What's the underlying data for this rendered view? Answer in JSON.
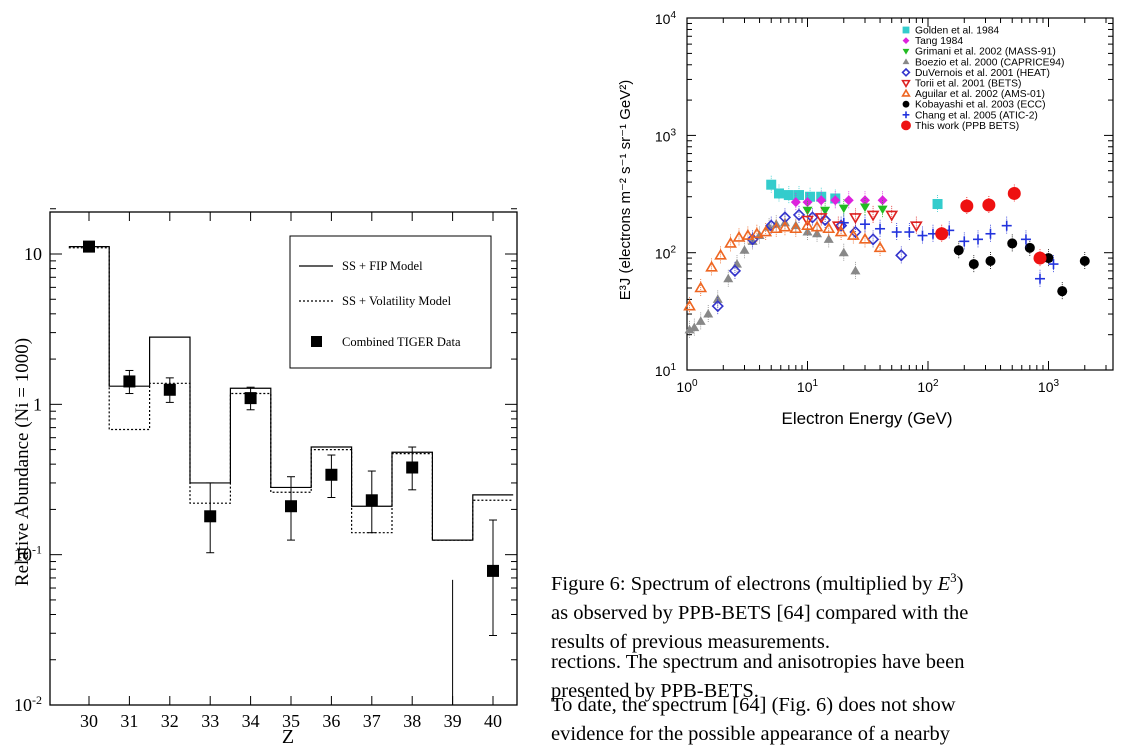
{
  "left_chart": {
    "type": "step-scatter",
    "ylabel": "Relative Abundance (Ni = 1000)",
    "xlabel": "Z",
    "y_log": true,
    "ylim": [
      0.01,
      20
    ],
    "xlim": [
      29.5,
      40.5
    ],
    "x_ticks": [
      "30",
      "31",
      "32",
      "33",
      "34",
      "35",
      "36",
      "37",
      "38",
      "39",
      "40"
    ],
    "y_ticks": [
      {
        "value": 10,
        "base": "10",
        "exp": ""
      },
      {
        "value": 1,
        "base": "1",
        "exp": ""
      },
      {
        "value": 0.1,
        "base": "10",
        "exp": "-1"
      },
      {
        "value": 0.01,
        "base": "10",
        "exp": "-2"
      }
    ],
    "legend": [
      {
        "label": "SS + FIP Model",
        "style": "solid"
      },
      {
        "label": "SS + Volatility Model",
        "style": "dotted"
      },
      {
        "label": "Combined TIGER Data",
        "style": "square"
      }
    ],
    "fip_model": [
      11.2,
      1.32,
      2.8,
      0.3,
      1.28,
      0.28,
      0.52,
      0.21,
      0.48,
      0.125,
      0.25
    ],
    "volatility_model": [
      11.0,
      0.68,
      1.38,
      0.22,
      1.18,
      0.26,
      0.5,
      0.14,
      0.47,
      0.125,
      0.23
    ],
    "data": [
      {
        "z": 30,
        "y": 11.2,
        "lo": 10.6,
        "hi": 11.8
      },
      {
        "z": 31,
        "y": 1.42,
        "lo": 1.18,
        "hi": 1.68
      },
      {
        "z": 32,
        "y": 1.25,
        "lo": 1.03,
        "hi": 1.5
      },
      {
        "z": 33,
        "y": 0.18,
        "lo": 0.103,
        "hi": 0.3
      },
      {
        "z": 34,
        "y": 1.1,
        "lo": 0.92,
        "hi": 1.3
      },
      {
        "z": 35,
        "y": 0.21,
        "lo": 0.125,
        "hi": 0.33
      },
      {
        "z": 36,
        "y": 0.34,
        "lo": 0.24,
        "hi": 0.46
      },
      {
        "z": 37,
        "y": 0.23,
        "lo": 0.14,
        "hi": 0.36
      },
      {
        "z": 38,
        "y": 0.38,
        "lo": 0.27,
        "hi": 0.52
      },
      {
        "z": 39,
        "y": null,
        "lo": 0.01,
        "hi": 0.068
      },
      {
        "z": 40,
        "y": 0.078,
        "lo": 0.029,
        "hi": 0.17
      }
    ]
  },
  "right_chart": {
    "type": "scatter",
    "xlabel": "Electron Energy (GeV)",
    "ylabel": "E³J (electrons m⁻² s⁻¹ sr⁻¹ GeV²)",
    "x_log": true,
    "y_log": true,
    "xlim": [
      1,
      3000
    ],
    "ylim": [
      10,
      10000
    ],
    "x_ticks": [
      {
        "value": 1,
        "exp": "0"
      },
      {
        "value": 10,
        "exp": "1"
      },
      {
        "value": 100,
        "exp": "2"
      },
      {
        "value": 1000,
        "exp": "3"
      }
    ],
    "y_ticks": [
      {
        "value": 10,
        "exp": "1"
      },
      {
        "value": 100,
        "exp": "2"
      },
      {
        "value": 1000,
        "exp": "3"
      },
      {
        "value": 10000,
        "exp": "4"
      }
    ],
    "series": [
      {
        "name": "Golden et al. 1984",
        "color": "#33cccc",
        "marker": "square",
        "points": [
          [
            5,
            380
          ],
          [
            5.8,
            320
          ],
          [
            7,
            310
          ],
          [
            8.5,
            310
          ],
          [
            10.5,
            300
          ],
          [
            13,
            300
          ],
          [
            17,
            290
          ],
          [
            120,
            260
          ]
        ]
      },
      {
        "name": "Tang 1984",
        "color": "#dd22dd",
        "marker": "diamond",
        "points": [
          [
            8,
            270
          ],
          [
            10,
            270
          ],
          [
            13,
            280
          ],
          [
            17,
            280
          ],
          [
            22,
            280
          ],
          [
            30,
            280
          ],
          [
            42,
            280
          ]
        ]
      },
      {
        "name": "Grimani et al. 2002 (MASS-91)",
        "color": "#22bb22",
        "marker": "tri-down",
        "points": [
          [
            10,
            230
          ],
          [
            14,
            230
          ],
          [
            20,
            240
          ],
          [
            30,
            245
          ],
          [
            42,
            235
          ]
        ]
      },
      {
        "name": "Boezio et al. 2000 (CAPRICE94)",
        "color": "#888888",
        "marker": "tri-up",
        "points": [
          [
            1.05,
            22
          ],
          [
            1.15,
            23
          ],
          [
            1.3,
            26
          ],
          [
            1.5,
            30
          ],
          [
            1.8,
            40
          ],
          [
            2.2,
            60
          ],
          [
            2.6,
            80
          ],
          [
            3,
            105
          ],
          [
            3.5,
            125
          ],
          [
            4,
            140
          ],
          [
            4.8,
            165
          ],
          [
            5.5,
            175
          ],
          [
            6.5,
            180
          ],
          [
            8,
            170
          ],
          [
            10,
            150
          ],
          [
            12,
            145
          ],
          [
            15,
            130
          ],
          [
            20,
            100
          ],
          [
            25,
            70
          ]
        ]
      },
      {
        "name": "DuVernois et al. 2001 (HEAT)",
        "color": "#3333cc",
        "marker": "diamond-open",
        "points": [
          [
            1.8,
            35
          ],
          [
            2.5,
            70
          ],
          [
            3.5,
            130
          ],
          [
            5,
            170
          ],
          [
            6.5,
            200
          ],
          [
            8.5,
            210
          ],
          [
            11,
            200
          ],
          [
            14,
            190
          ],
          [
            19,
            170
          ],
          [
            25,
            150
          ],
          [
            35,
            130
          ],
          [
            60,
            95
          ]
        ]
      },
      {
        "name": "Torii et al. 2001 (BETS)",
        "color": "#dd2222",
        "marker": "tri-down-open",
        "points": [
          [
            10,
            190
          ],
          [
            13,
            200
          ],
          [
            18,
            170
          ],
          [
            25,
            200
          ],
          [
            35,
            210
          ],
          [
            50,
            210
          ],
          [
            80,
            170
          ]
        ]
      },
      {
        "name": "Aguilar et al. 2002 (AMS-01)",
        "color": "#ee6622",
        "marker": "tri-up-open",
        "points": [
          [
            1.05,
            35
          ],
          [
            1.3,
            50
          ],
          [
            1.6,
            75
          ],
          [
            1.9,
            95
          ],
          [
            2.3,
            120
          ],
          [
            2.7,
            135
          ],
          [
            3.2,
            140
          ],
          [
            3.8,
            145
          ],
          [
            4.5,
            150
          ],
          [
            5.5,
            160
          ],
          [
            6.5,
            165
          ],
          [
            8,
            160
          ],
          [
            10,
            170
          ],
          [
            12,
            165
          ],
          [
            15,
            160
          ],
          [
            19,
            150
          ],
          [
            24,
            140
          ],
          [
            30,
            130
          ],
          [
            40,
            110
          ]
        ]
      },
      {
        "name": "Kobayashi et al. 2003 (ECC)",
        "color": "#000000",
        "marker": "circle",
        "points": [
          [
            180,
            105
          ],
          [
            240,
            80
          ],
          [
            330,
            85
          ],
          [
            500,
            120
          ],
          [
            700,
            110
          ],
          [
            1000,
            90
          ],
          [
            1300,
            47
          ],
          [
            2000,
            85
          ]
        ]
      },
      {
        "name": "Chang et al. 2005 (ATIC-2)",
        "color": "#2233dd",
        "marker": "plus",
        "points": [
          [
            20,
            180
          ],
          [
            30,
            175
          ],
          [
            40,
            160
          ],
          [
            55,
            150
          ],
          [
            70,
            150
          ],
          [
            90,
            140
          ],
          [
            110,
            145
          ],
          [
            150,
            155
          ],
          [
            200,
            125
          ],
          [
            260,
            130
          ],
          [
            330,
            145
          ],
          [
            450,
            170
          ],
          [
            650,
            130
          ],
          [
            850,
            60
          ],
          [
            1100,
            80
          ]
        ]
      },
      {
        "name": "This work (PPB BETS)",
        "color": "#ee1111",
        "marker": "circle-red",
        "points": [
          [
            130,
            145
          ],
          [
            210,
            250
          ],
          [
            320,
            255
          ],
          [
            520,
            320
          ],
          [
            850,
            90
          ]
        ]
      }
    ]
  },
  "figure_caption": {
    "prefix": "Figure 6: Spectrum of electrons (multiplied by ",
    "math": "E",
    "math_exp": "3",
    "rest_line1": ")",
    "line2": "as observed by PPB-BETS [64] compared with the",
    "line3": "results of previous measurements."
  },
  "body": {
    "para1_line1": "rections. The spectrum and anisotropies have been",
    "para1_line2": "presented by PPB-BETS.",
    "para2_line1": "To date, the spectrum [64] (Fig. 6) does not show",
    "para2_line2": "evidence for the possible appearance of a nearby"
  }
}
